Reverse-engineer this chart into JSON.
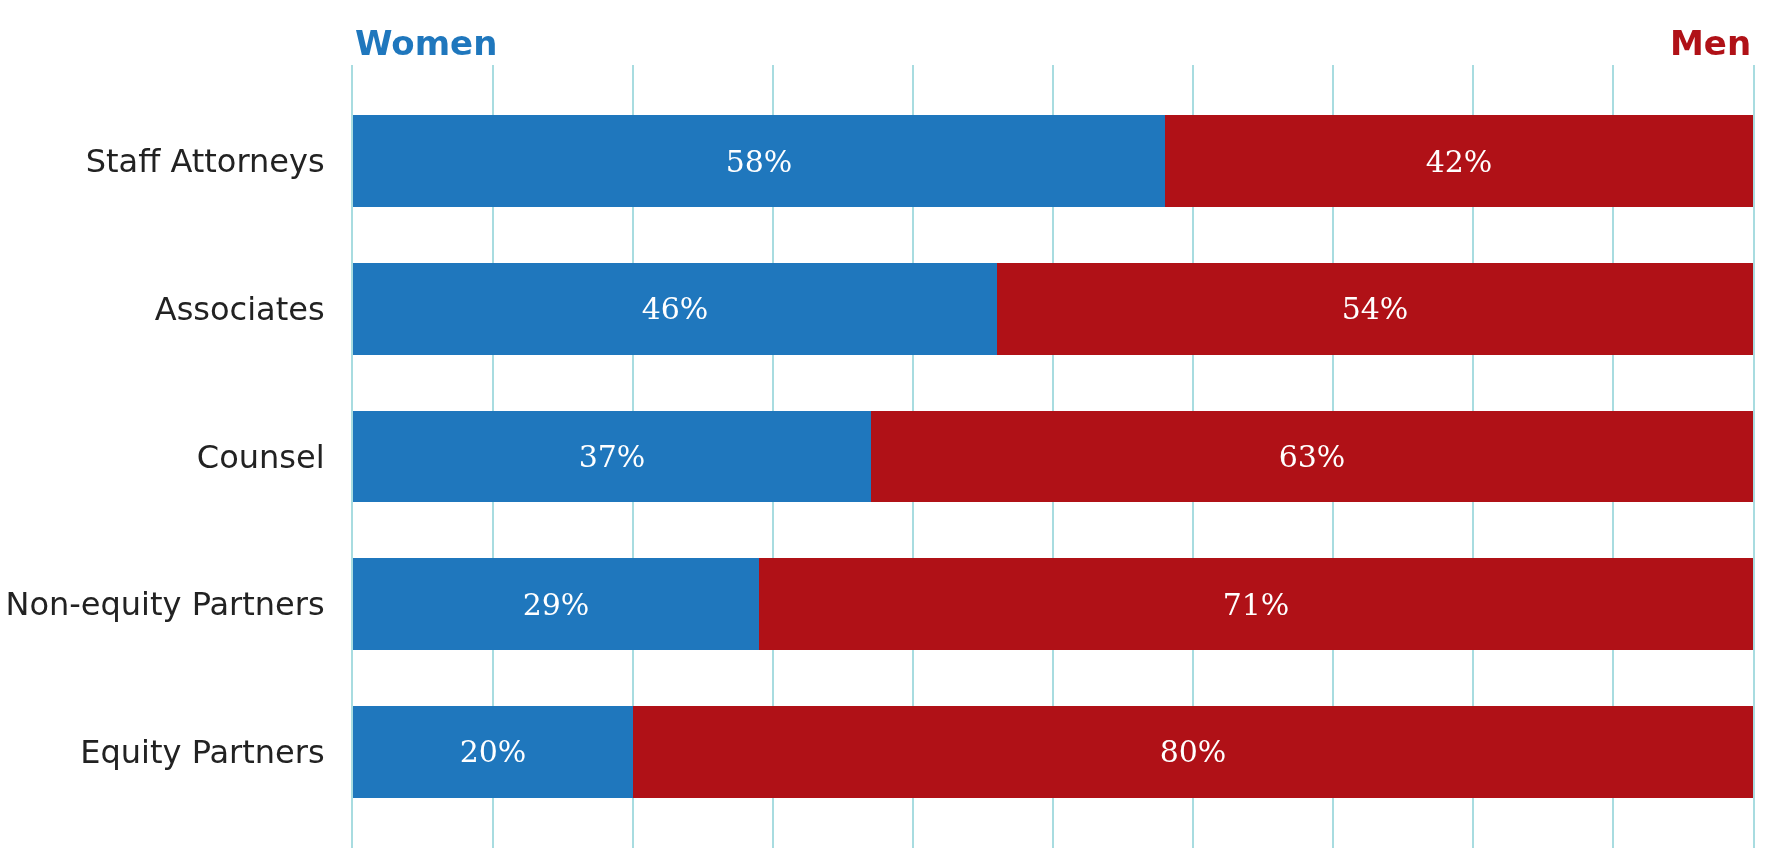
{
  "chart_data": {
    "type": "bar",
    "orientation": "horizontal",
    "stacked": true,
    "categories": [
      "Staff Attorneys",
      "Associates",
      "Counsel",
      "Non-equity Partners",
      "Equity Partners"
    ],
    "series": [
      {
        "name": "Women",
        "color": "#1f77bd",
        "values": [
          58,
          46,
          37,
          29,
          20
        ],
        "value_labels": [
          "58%",
          "46%",
          "37%",
          "29%",
          "20%"
        ]
      },
      {
        "name": "Men",
        "color": "#b01117",
        "values": [
          42,
          54,
          63,
          71,
          80
        ],
        "value_labels": [
          "42%",
          "54%",
          "63%",
          "71%",
          "80%"
        ]
      }
    ],
    "xlim": [
      0,
      100
    ],
    "xticks": [
      {
        "value": 10,
        "label": null
      },
      {
        "value": 20,
        "label": null
      },
      {
        "value": 30,
        "label": null
      },
      {
        "value": 40,
        "label": null
      },
      {
        "value": 50,
        "label": null
      },
      {
        "value": 60,
        "label": null
      },
      {
        "value": 70,
        "label": null
      },
      {
        "value": 80,
        "label": null
      },
      {
        "value": 90,
        "label": null
      }
    ],
    "tick_labels": "y",
    "grid": "x",
    "legend": false
  }
}
